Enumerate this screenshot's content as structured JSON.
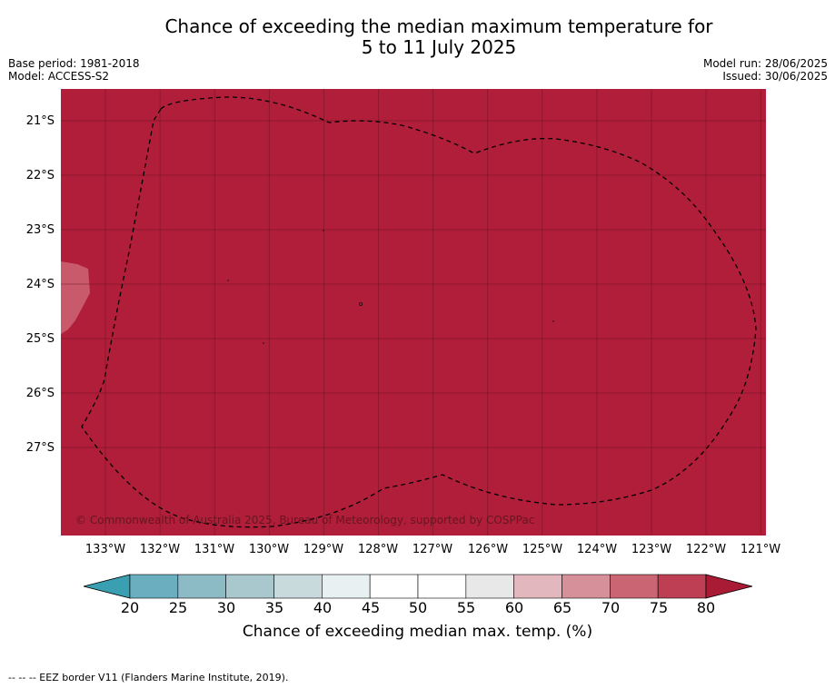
{
  "title": {
    "line1": "Chance of exceeding the median maximum temperature for",
    "line2": "5 to 11 July 2025"
  },
  "meta": {
    "base_period": "Base period: 1981-2018",
    "model": "Model: ACCESS-S2",
    "model_run": "Model run: 28/06/2025",
    "issued": "Issued: 30/06/2025"
  },
  "map": {
    "latitude_labels": [
      "21°S",
      "22°S",
      "23°S",
      "24°S",
      "25°S",
      "26°S",
      "27°S"
    ],
    "longitude_labels": [
      "133°W",
      "132°W",
      "131°W",
      "130°W",
      "129°W",
      "128°W",
      "127°W",
      "126°W",
      "125°W",
      "124°W",
      "123°W",
      "122°W",
      "121°W"
    ],
    "background_color": "#b01e39",
    "grid": true,
    "copyright": "© Commonwealth of Australia 2025, Bureau of Meteorology, supported by COSPPac",
    "boundary_style": "dashed black line (EEZ border)",
    "light_patch_color": "#c85a6c"
  },
  "colorbar": {
    "ticks": [
      "20",
      "25",
      "30",
      "35",
      "40",
      "45",
      "50",
      "55",
      "60",
      "65",
      "70",
      "75",
      "80"
    ],
    "colors": [
      "#6aaebf",
      "#8cbbc6",
      "#a9c8cd",
      "#c9dadd",
      "#e9f0f2",
      "#ffffff",
      "#ffffff",
      "#e8e8e8",
      "#e2b8be",
      "#d6909a",
      "#ca6673",
      "#be3f53"
    ],
    "under_color": "#3a9fb0",
    "over_color": "#a91a35",
    "label": "Chance of exceeding median max. temp. (%)"
  },
  "footnote": "--  --  -- EEZ border V11 (Flanders Marine Institute, 2019)."
}
